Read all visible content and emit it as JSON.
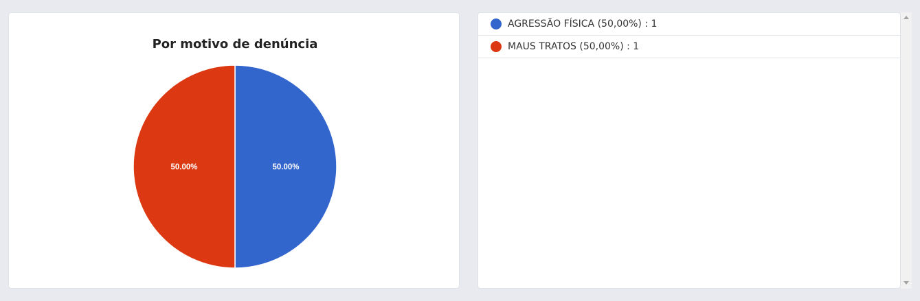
{
  "chart_data": {
    "type": "pie",
    "title": "Por motivo de denúncia",
    "categories": [
      "AGRESSÃO FÍSICA",
      "MAUS TRATOS"
    ],
    "values": [
      1,
      1
    ],
    "slice_labels": [
      "50.00%",
      "50.00%"
    ],
    "colors": [
      "#3366cc",
      "#dc3912"
    ],
    "legend_placement": "separate panel right"
  },
  "legend": {
    "items": [
      {
        "text": "AGRESSÃO FÍSICA (50,00%) : 1",
        "color": "#3366cc"
      },
      {
        "text": "MAUS TRATOS (50,00%) : 1",
        "color": "#dc3912"
      }
    ]
  }
}
